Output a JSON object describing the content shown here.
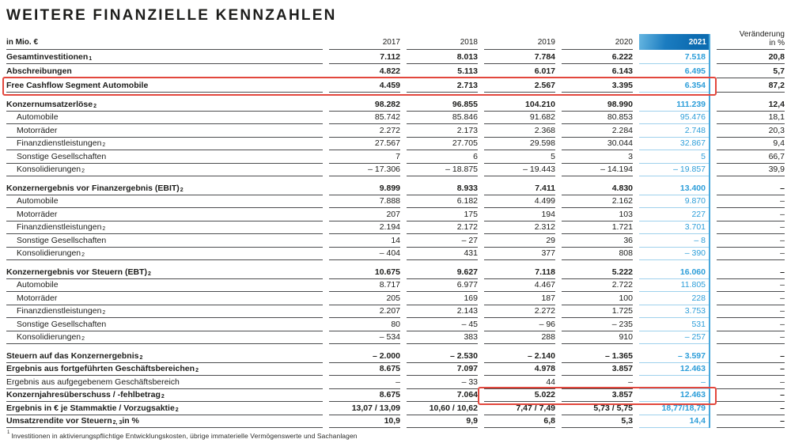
{
  "title": "WEITERE FINANZIELLE KENNZAHLEN",
  "unit_label": "in Mio. €",
  "columns": [
    "2017",
    "2018",
    "2019",
    "2020",
    "2021"
  ],
  "change_header": [
    "Veränderung",
    "in %"
  ],
  "colors": {
    "text": "#1d1d1b",
    "row_border": "#4b4c4e",
    "accent_blue_band_from": "#66b6e1",
    "accent_blue_band_to": "#0d6cb1",
    "value_blue": "#2d9ed9",
    "underline_blue": "#9fd1ec",
    "column_line_blue": "#49a7db",
    "highlight_red": "#e2473d"
  },
  "sections": [
    {
      "rows": [
        {
          "label": "Gesamtinvestitionen",
          "sup": "1",
          "bold": true,
          "values": [
            "7.112",
            "8.013",
            "7.784",
            "6.222",
            "7.518"
          ],
          "change": "20,8"
        },
        {
          "label": "Abschreibungen",
          "bold": true,
          "values": [
            "4.822",
            "5.113",
            "6.017",
            "6.143",
            "6.495"
          ],
          "change": "5,7"
        },
        {
          "label": "Free Cashflow Segment Automobile",
          "bold": true,
          "highlight": "full",
          "values": [
            "4.459",
            "2.713",
            "2.567",
            "3.395",
            "6.354"
          ],
          "change": "87,2"
        }
      ]
    },
    {
      "rows": [
        {
          "label": "Konzernumsatzerlöse",
          "sup": "2",
          "bold": true,
          "values": [
            "98.282",
            "96.855",
            "104.210",
            "98.990",
            "111.239"
          ],
          "change": "12,4"
        },
        {
          "label": "Automobile",
          "indent": true,
          "values": [
            "85.742",
            "85.846",
            "91.682",
            "80.853",
            "95.476"
          ],
          "change": "18,1"
        },
        {
          "label": "Motorräder",
          "indent": true,
          "values": [
            "2.272",
            "2.173",
            "2.368",
            "2.284",
            "2.748"
          ],
          "change": "20,3"
        },
        {
          "label": "Finanzdienstleistungen",
          "sup": "2",
          "indent": true,
          "values": [
            "27.567",
            "27.705",
            "29.598",
            "30.044",
            "32.867"
          ],
          "change": "9,4"
        },
        {
          "label": "Sonstige Gesellschaften",
          "indent": true,
          "values": [
            "7",
            "6",
            "5",
            "3",
            "5"
          ],
          "change": "66,7"
        },
        {
          "label": "Konsolidierungen",
          "sup": "2",
          "indent": true,
          "values": [
            "– 17.306",
            "– 18.875",
            "– 19.443",
            "– 14.194",
            "– 19.857"
          ],
          "change": "39,9"
        }
      ]
    },
    {
      "rows": [
        {
          "label": "Konzernergebnis vor Finanzergebnis (EBIT)",
          "sup": "2",
          "bold": true,
          "values": [
            "9.899",
            "8.933",
            "7.411",
            "4.830",
            "13.400"
          ],
          "change": "–"
        },
        {
          "label": "Automobile",
          "indent": true,
          "values": [
            "7.888",
            "6.182",
            "4.499",
            "2.162",
            "9.870"
          ],
          "change": "–"
        },
        {
          "label": "Motorräder",
          "indent": true,
          "values": [
            "207",
            "175",
            "194",
            "103",
            "227"
          ],
          "change": "–"
        },
        {
          "label": "Finanzdienstleistungen",
          "sup": "2",
          "indent": true,
          "values": [
            "2.194",
            "2.172",
            "2.312",
            "1.721",
            "3.701"
          ],
          "change": "–"
        },
        {
          "label": "Sonstige Gesellschaften",
          "indent": true,
          "values": [
            "14",
            "– 27",
            "29",
            "36",
            "– 8"
          ],
          "change": "–"
        },
        {
          "label": "Konsolidierungen",
          "sup": "2",
          "indent": true,
          "values": [
            "– 404",
            "431",
            "377",
            "808",
            "– 390"
          ],
          "change": "–"
        }
      ]
    },
    {
      "rows": [
        {
          "label": "Konzernergebnis vor Steuern (EBT)",
          "sup": "2",
          "bold": true,
          "values": [
            "10.675",
            "9.627",
            "7.118",
            "5.222",
            "16.060"
          ],
          "change": "–"
        },
        {
          "label": "Automobile",
          "indent": true,
          "values": [
            "8.717",
            "6.977",
            "4.467",
            "2.722",
            "11.805"
          ],
          "change": "–"
        },
        {
          "label": "Motorräder",
          "indent": true,
          "values": [
            "205",
            "169",
            "187",
            "100",
            "228"
          ],
          "change": "–"
        },
        {
          "label": "Finanzdienstleistungen",
          "sup": "2",
          "indent": true,
          "values": [
            "2.207",
            "2.143",
            "2.272",
            "1.725",
            "3.753"
          ],
          "change": "–"
        },
        {
          "label": "Sonstige Gesellschaften",
          "indent": true,
          "values": [
            "80",
            "– 45",
            "– 96",
            "– 235",
            "531"
          ],
          "change": "–"
        },
        {
          "label": "Konsolidierungen",
          "sup": "2",
          "indent": true,
          "values": [
            "– 534",
            "383",
            "288",
            "910",
            "– 257"
          ],
          "change": "–"
        }
      ]
    },
    {
      "rows": [
        {
          "label": "Steuern auf das Konzernergebnis",
          "sup": "2",
          "bold": true,
          "values": [
            "– 2.000",
            "– 2.530",
            "– 2.140",
            "– 1.365",
            "– 3.597"
          ],
          "change": "–"
        },
        {
          "label": "Ergebnis aus fortgeführten Geschäftsbereichen",
          "sup": "2",
          "bold": true,
          "values": [
            "8.675",
            "7.097",
            "4.978",
            "3.857",
            "12.463"
          ],
          "change": "–"
        },
        {
          "label": "Ergebnis aus aufgegebenem Geschäftsbereich",
          "values": [
            "–",
            "– 33",
            "44",
            "–",
            "–"
          ],
          "change": "–"
        },
        {
          "label": "Konzernjahresüberschuss / -fehlbetrag",
          "sup": "2",
          "bold": true,
          "highlight": "values",
          "values": [
            "8.675",
            "7.064",
            "5.022",
            "3.857",
            "12.463"
          ],
          "change": "–"
        },
        {
          "label": "Ergebnis in € je Stammaktie / Vorzugsaktie",
          "sup": "2",
          "bold": true,
          "values": [
            "13,07 / 13,09",
            "10,60 / 10,62",
            "7,47 / 7,49",
            "5,73 / 5,75",
            "18,77/18,79"
          ],
          "change": "–"
        },
        {
          "label": "Umsatzrendite vor Steuern",
          "sup": "2, 3",
          "post": " in %",
          "bold": true,
          "values": [
            "10,9",
            "9,9",
            "6,8",
            "5,3",
            "14,4"
          ],
          "change": "–"
        }
      ]
    }
  ],
  "footnote": {
    "sup": "1",
    "text": "Investitionen in aktivierungspflichtige Entwicklungskosten, übrige immaterielle Vermögenswerte und Sachanlagen"
  }
}
